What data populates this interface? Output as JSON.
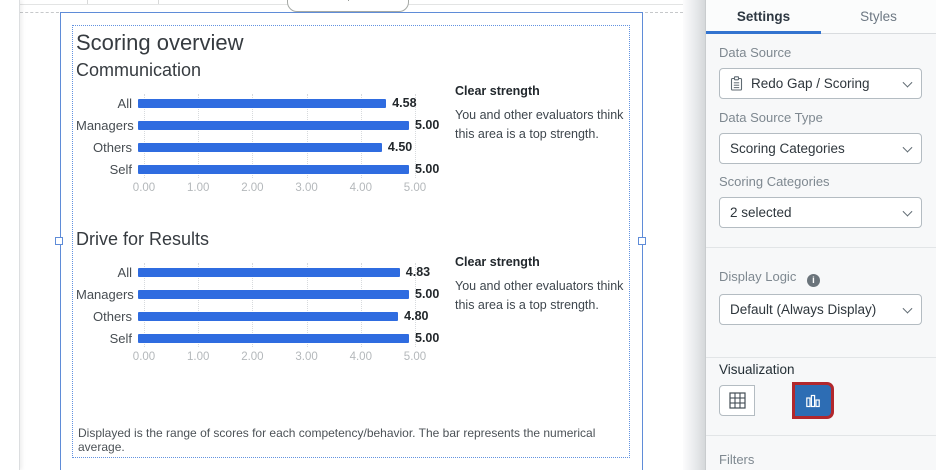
{
  "canvas": {
    "widget": {
      "title": "Scoring overview",
      "footer": "Displayed is the range of scores for each competency/behavior. The bar represents the numerical average.",
      "sections": [
        {
          "title": "Communication",
          "callout_title": "Clear strength",
          "callout_body": "You and other evaluators think this area is a top strength."
        },
        {
          "title": "Drive for Results",
          "callout_title": "Clear strength",
          "callout_body": "You and other evaluators think this area is a top strength."
        }
      ]
    }
  },
  "chart_data": [
    {
      "type": "bar",
      "orientation": "horizontal",
      "title": "Communication",
      "categories": [
        "All",
        "Managers",
        "Others",
        "Self"
      ],
      "values": [
        4.58,
        5.0,
        4.5,
        5.0
      ],
      "value_labels": [
        "4.58",
        "5.00",
        "4.50",
        "5.00"
      ],
      "xlim": [
        0,
        5
      ],
      "tick_labels": [
        "0.00",
        "1.00",
        "2.00",
        "3.00",
        "4.00",
        "5.00"
      ],
      "grid": "dotted-vertical",
      "legend": "none",
      "bar_color": "#2f6ce0"
    },
    {
      "type": "bar",
      "orientation": "horizontal",
      "title": "Drive for Results",
      "categories": [
        "All",
        "Managers",
        "Others",
        "Self"
      ],
      "values": [
        4.83,
        5.0,
        4.8,
        5.0
      ],
      "value_labels": [
        "4.83",
        "5.00",
        "4.80",
        "5.00"
      ],
      "xlim": [
        0,
        5
      ],
      "tick_labels": [
        "0.00",
        "1.00",
        "2.00",
        "3.00",
        "4.00",
        "5.00"
      ],
      "grid": "dotted-vertical",
      "legend": "none",
      "bar_color": "#2f6ce0"
    }
  ],
  "panel": {
    "tabs": [
      {
        "label": "Settings",
        "active": true
      },
      {
        "label": "Styles",
        "active": false
      }
    ],
    "fields": [
      {
        "label": "Data Source",
        "value": "Redo Gap / Scoring",
        "icon": "clipboard-icon"
      },
      {
        "label": "Data Source Type",
        "value": "Scoring Categories"
      },
      {
        "label": "Scoring Categories",
        "value": "2 selected"
      },
      {
        "label": "Display Logic",
        "value": "Default (Always Display)",
        "info_icon": "info-icon"
      }
    ],
    "visualization": {
      "label": "Visualization",
      "options": [
        {
          "name": "table",
          "icon": "table-icon",
          "selected": false
        },
        {
          "name": "bar-chart",
          "icon": "bar-chart-icon",
          "selected": true,
          "highlighted": true
        }
      ]
    },
    "filters_label": "Filters"
  },
  "colors": {
    "bar_blue": "#2f6ce0",
    "selection_blue": "#5f8cd8",
    "tab_underline": "#3273cf",
    "viz_selected_bg": "#2d6db4",
    "annotation_red": "#b2282d"
  }
}
